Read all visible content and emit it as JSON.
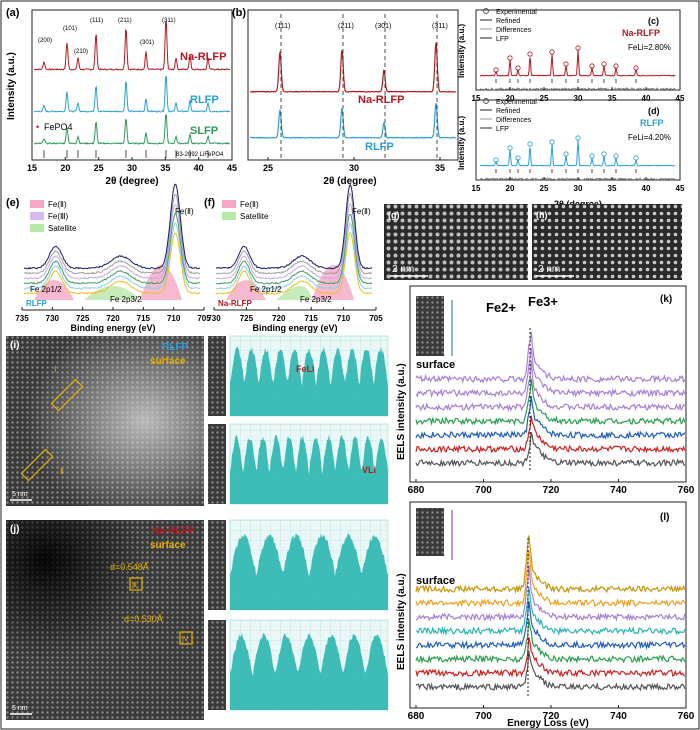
{
  "panels": {
    "a": {
      "letter": "(a)",
      "ylabel": "Intensity (a.u.)",
      "xlabel": "2θ (degree)",
      "xticks": [
        "15",
        "20",
        "25",
        "30",
        "35",
        "40",
        "45"
      ],
      "series": [
        {
          "name": "Na-RLFP",
          "color": "#b5191f"
        },
        {
          "name": "RLFP",
          "color": "#2a9fd6"
        },
        {
          "name": "SLFP",
          "color": "#2e9a5a"
        }
      ],
      "peaks": [
        "(200)",
        "(101)",
        "(210)",
        "(111)",
        "(211)",
        "(301)",
        "(311)"
      ],
      "impurity": "FePO4",
      "reference": "83-2092 LiFePO4"
    },
    "b": {
      "letter": "(b)",
      "xlabel": "2θ (degree)",
      "xticks": [
        "25",
        "30",
        "35"
      ],
      "peaks": [
        "(111)",
        "(211)",
        "(301)",
        "(311)"
      ],
      "series": [
        {
          "name": "Na-RLFP",
          "color": "#b5191f"
        },
        {
          "name": "RLFP",
          "color": "#2a9fd6"
        }
      ]
    },
    "c": {
      "letter": "(c)",
      "ylabel": "Intensity (a.u.)",
      "xticks": [
        "15",
        "20",
        "25",
        "30",
        "35",
        "40",
        "45"
      ],
      "legend": [
        "Experimental",
        "Refined",
        "Differences",
        "LFP"
      ],
      "sample": "Na-RLFP",
      "fe_li": "FeLi=2.80%"
    },
    "d": {
      "letter": "(d)",
      "ylabel": "Intensity (a.u.)",
      "xlabel": "2θ (degree)",
      "xticks": [
        "15",
        "20",
        "25",
        "30",
        "35",
        "40",
        "45"
      ],
      "legend": [
        "Experimental",
        "Refined",
        "Differences",
        "LFP"
      ],
      "sample": "RLFP",
      "fe_li": "FeLi=4.20%"
    },
    "e": {
      "letter": "(e)",
      "xlabel": "Binding energy (eV)",
      "xticks": [
        "735",
        "730",
        "725",
        "720",
        "715",
        "710",
        "705"
      ],
      "legend": [
        "Fe(Ⅱ)",
        "Fe(Ⅲ)",
        "Satellite"
      ],
      "labels": [
        "Fe 2p1/2",
        "Fe 2p3/2",
        "Fe(Ⅱ)"
      ],
      "sample": "RLFP"
    },
    "f": {
      "letter": "(f)",
      "xlabel": "Binding energy (eV)",
      "xticks": [
        "730",
        "725",
        "720",
        "715",
        "710",
        "705"
      ],
      "legend": [
        "Fe(Ⅱ)",
        "Satellite"
      ],
      "labels": [
        "Fe 2p1/2",
        "Fe 2p3/2",
        "Fe(Ⅱ)"
      ],
      "sample": "Na-RLFP"
    },
    "g": {
      "letter": "(g)",
      "scale": "2 nm"
    },
    "h": {
      "letter": "(h)",
      "scale": "2 nm"
    },
    "i": {
      "letter": "(i)",
      "sample": "RLFP",
      "region": "surface",
      "scale": "5 nm",
      "annot1": "FeLi",
      "annot2": "VLi",
      "roi": [
        "Ⅰ",
        "Ⅱ"
      ]
    },
    "j": {
      "letter": "(j)",
      "sample": "Na-RLFP",
      "region": "surface",
      "scale": "5 nm",
      "d1": "d=0.548Å",
      "d2": "d=0.530Å",
      "roi": [
        "Ⅲ",
        "Ⅳ"
      ]
    },
    "k": {
      "letter": "(k)",
      "ylabel": "EELS intensity (a.u.)",
      "xticks": [
        "680",
        "700",
        "720",
        "740",
        "760"
      ],
      "fe2": "Fe2+",
      "fe3": "Fe3+",
      "inset": "surface"
    },
    "l": {
      "letter": "(l)",
      "ylabel": "EELS intensity (a.u.)",
      "xlabel": "Energy Loss (eV)",
      "xticks": [
        "680",
        "700",
        "720",
        "740",
        "760"
      ],
      "inset": "surface"
    }
  },
  "colors": {
    "red": "#b5191f",
    "blue": "#2a9fd6",
    "green": "#2e9a5a",
    "teal": "#2bb5b0",
    "purple": "#a87fd8",
    "orange": "#f0a020",
    "gold": "#c8960a",
    "gray": "#555555"
  }
}
